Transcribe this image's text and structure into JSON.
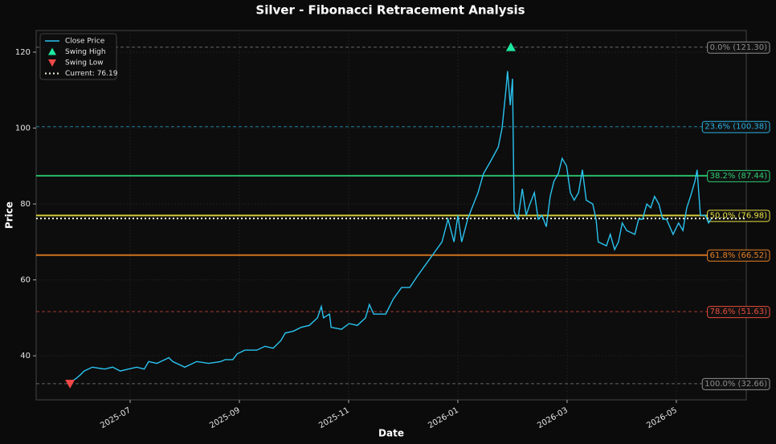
{
  "chart_data": {
    "type": "line",
    "title": "Silver - Fibonacci Retracement Analysis",
    "x_label": "Date",
    "y_label": "Price",
    "x": [
      5.9,
      6.01,
      6.09,
      6.16,
      6.31,
      6.53,
      6.68,
      6.82,
      6.97,
      7.12,
      7.26,
      7.34,
      7.49,
      7.71,
      7.78,
      8.0,
      8.22,
      8.44,
      8.66,
      8.74,
      8.88,
      8.96,
      9.1,
      9.32,
      9.47,
      9.62,
      9.76,
      9.84,
      9.99,
      10.13,
      10.28,
      10.43,
      10.5,
      10.54,
      10.65,
      10.68,
      10.87,
      11.01,
      11.16,
      11.31,
      11.38,
      11.46,
      11.68,
      11.82,
      11.97,
      12.12,
      12.26,
      12.41,
      12.56,
      12.71,
      12.82,
      12.93,
      13.0,
      13.07,
      13.18,
      13.26,
      13.37,
      13.47,
      13.59,
      13.74,
      13.81,
      13.88,
      13.91,
      13.96,
      14.0,
      14.03,
      14.1,
      14.18,
      14.25,
      14.32,
      14.4,
      14.47,
      14.54,
      14.62,
      14.69,
      14.76,
      14.84,
      14.91,
      14.99,
      15.06,
      15.13,
      15.21,
      15.28,
      15.35,
      15.47,
      15.53,
      15.57,
      15.72,
      15.79,
      15.87,
      15.94,
      16.01,
      16.09,
      16.24,
      16.31,
      16.38,
      16.46,
      16.53,
      16.6,
      16.68,
      16.75,
      16.82,
      16.94,
      17.04,
      17.12,
      17.19,
      17.26,
      17.34,
      17.38,
      17.44,
      17.53,
      17.59,
      17.63
    ],
    "series": [
      {
        "name": "Close Price",
        "color": "#2ac3f0",
        "values": [
          33,
          34,
          35,
          36,
          37,
          36.5,
          37,
          36,
          36.5,
          37,
          36.5,
          38.5,
          38,
          39.5,
          38.5,
          37,
          38.5,
          38,
          38.5,
          39,
          39,
          40.5,
          41.5,
          41.5,
          42.5,
          42,
          44,
          46,
          46.5,
          47.5,
          48,
          50,
          53,
          50,
          51,
          47.5,
          47,
          48.5,
          48,
          50,
          53.5,
          51,
          51,
          55,
          58,
          58,
          61,
          64,
          67,
          70,
          76,
          70,
          77,
          70,
          76,
          79,
          83,
          88,
          91,
          95,
          100,
          110,
          115,
          106,
          113,
          78,
          76,
          84,
          77,
          80,
          83,
          76,
          77,
          74,
          82,
          86,
          88,
          92,
          90,
          83,
          81,
          83,
          89,
          81,
          80,
          76,
          70,
          69,
          72,
          68,
          70,
          75,
          73,
          72,
          76,
          76,
          80,
          79,
          82,
          80,
          76,
          76,
          72,
          75,
          73,
          79,
          82,
          86,
          89,
          77,
          77,
          75,
          76
        ]
      }
    ],
    "swing_high": {
      "name": "Swing High",
      "x": 13.97,
      "value": 121.3,
      "color": "#1de9a0"
    },
    "swing_low": {
      "name": "Swing Low",
      "x": 5.9,
      "value": 32.66,
      "color": "#f04848"
    },
    "current": {
      "name": "Current: 76.19",
      "value": 76.19,
      "color": "#f2f2e0"
    },
    "fib_levels": [
      {
        "label": "0.0% (121.30)",
        "value": 121.3,
        "color": "#8c8c8c",
        "style": "dashed"
      },
      {
        "label": "23.6% (100.38)",
        "value": 100.38,
        "color": "#2ab0e0",
        "style": "dashed"
      },
      {
        "label": "38.2% (87.44)",
        "value": 87.44,
        "color": "#2ecc71",
        "style": "solid"
      },
      {
        "label": "50.0% (76.98)",
        "value": 76.98,
        "color": "#e8e040",
        "style": "solid"
      },
      {
        "label": "61.8% (66.52)",
        "value": 66.52,
        "color": "#e67e22",
        "style": "solid"
      },
      {
        "label": "78.6% (51.63)",
        "value": 51.63,
        "color": "#e74c3c",
        "style": "dashed"
      },
      {
        "label": "100.0% (32.66)",
        "value": 32.66,
        "color": "#8c8c8c",
        "style": "dashed"
      }
    ],
    "xlim": [
      5.28,
      18.28
    ],
    "ylim": [
      28.4,
      125.7
    ],
    "xticks": [
      {
        "value": 7,
        "label": "2025-07"
      },
      {
        "value": 9,
        "label": "2025-09"
      },
      {
        "value": 11,
        "label": "2025-11"
      },
      {
        "value": 13,
        "label": "2026-01"
      },
      {
        "value": 15,
        "label": "2026-03"
      },
      {
        "value": 17,
        "label": "2026-05"
      }
    ],
    "yticks": [
      40,
      60,
      80,
      100,
      120
    ],
    "grid": true,
    "legend": "upper left"
  }
}
